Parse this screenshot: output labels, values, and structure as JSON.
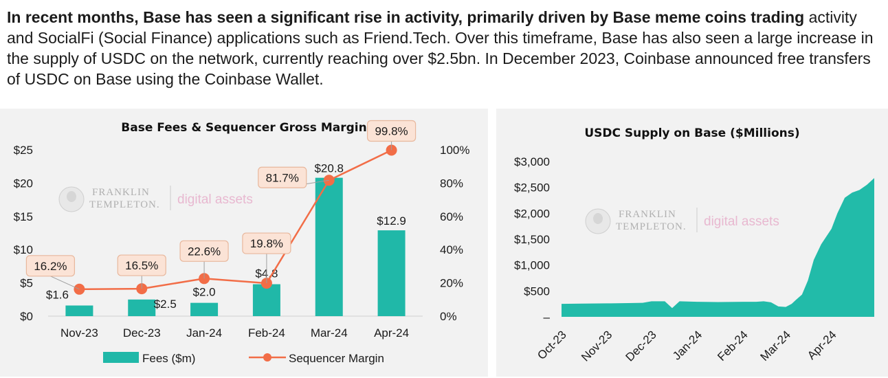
{
  "intro": {
    "bold_text": "In recent months, Base has seen a significant rise in activity, primarily driven by Base meme coins trading",
    "rest_text": " activity and SocialFi (Social Finance) applications such as Friend.Tech. Over this timeframe, Base has also seen a large increase in the supply of USDC on the network, currently reaching over $2.5bn. In December 2023, Coinbase announced free transfers of USDC on Base using the Coinbase Wallet."
  },
  "watermark": {
    "line1": "FRANKLIN",
    "line2": "TEMPLETON.",
    "digital": "digital assets"
  },
  "colors": {
    "bar": "#20b8a8",
    "line": "#f26d47",
    "callout_fill": "#fbe3d6",
    "callout_stroke": "#e8b79c",
    "area": "#22bba9",
    "panel_bg": "#f2f2f2"
  },
  "chart_data": [
    {
      "type": "bar",
      "title": "Base Fees & Sequencer Gross Margin",
      "categories": [
        "Nov-23",
        "Dec-23",
        "Jan-24",
        "Feb-24",
        "Mar-24",
        "Apr-24"
      ],
      "series": [
        {
          "name": "Fees ($m)",
          "type": "bar",
          "axis": "left",
          "values": [
            1.6,
            2.5,
            2.0,
            4.8,
            20.8,
            12.9
          ],
          "labels": [
            "$1.6",
            "$2.5",
            "$2.0",
            "$4.8",
            "$20.8",
            "$12.9"
          ]
        },
        {
          "name": "Sequencer Margin",
          "type": "line",
          "axis": "right",
          "values": [
            16.2,
            16.5,
            22.6,
            19.8,
            81.7,
            99.8
          ],
          "labels": [
            "16.2%",
            "16.5%",
            "22.6%",
            "19.8%",
            "81.7%",
            "99.8%"
          ]
        }
      ],
      "ylim_left": [
        0,
        25
      ],
      "yticks_left": [
        "$0",
        "$5",
        "$10",
        "$15",
        "$20",
        "$25"
      ],
      "ylim_right": [
        0,
        100
      ],
      "yticks_right": [
        "0%",
        "20%",
        "40%",
        "60%",
        "80%",
        "100%"
      ],
      "grid": false,
      "legend_position": "bottom"
    },
    {
      "type": "area",
      "title": "USDC Supply on Base ($Millions)",
      "x_tick_labels": [
        "Oct-23",
        "Nov-23",
        "Dec-23",
        "Jan-24",
        "Feb-24",
        "Mar-24",
        "Apr-24"
      ],
      "x": [
        "2023-10-01",
        "2023-10-15",
        "2023-11-01",
        "2023-11-15",
        "2023-11-25",
        "2023-12-01",
        "2023-12-05",
        "2023-12-10",
        "2023-12-15",
        "2023-12-20",
        "2024-01-01",
        "2024-01-15",
        "2024-02-01",
        "2024-02-10",
        "2024-02-15",
        "2024-02-20",
        "2024-02-25",
        "2024-03-01",
        "2024-03-05",
        "2024-03-08",
        "2024-03-12",
        "2024-03-16",
        "2024-03-20",
        "2024-03-25",
        "2024-04-01",
        "2024-04-05",
        "2024-04-10",
        "2024-04-15",
        "2024-04-20",
        "2024-04-25",
        "2024-04-30"
      ],
      "y": [
        250,
        255,
        260,
        265,
        270,
        300,
        300,
        300,
        170,
        300,
        290,
        285,
        290,
        290,
        300,
        280,
        200,
        190,
        250,
        330,
        430,
        700,
        1100,
        1400,
        1700,
        2000,
        2300,
        2400,
        2450,
        2550,
        2680
      ],
      "ylim": [
        0,
        3000
      ],
      "yticks": [
        "–",
        "$500",
        "$1,000",
        "$1,500",
        "$2,000",
        "$2,500",
        "$3,000"
      ],
      "grid": false,
      "legend": "none"
    }
  ]
}
